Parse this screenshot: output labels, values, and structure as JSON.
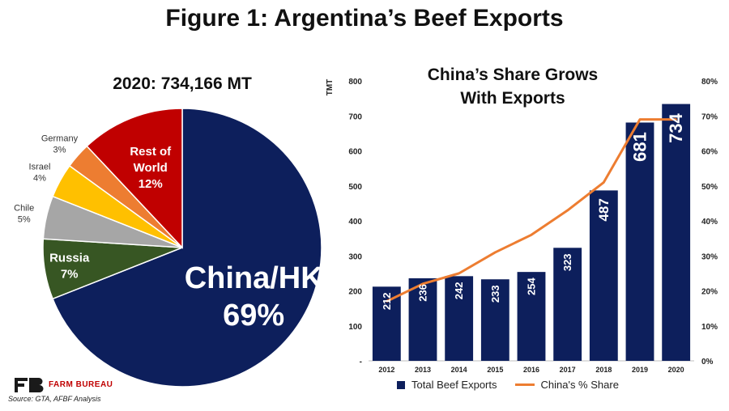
{
  "title": "Figure 1: Argentina’s Beef Exports",
  "source": "Source: GTA, AFBF Analysis",
  "logo_text": "FARM BUREAU",
  "chart_data": [
    {
      "type": "pie",
      "title": "2020: 734,166 MT",
      "slices": [
        {
          "label": "China/HK",
          "value": 69,
          "display": "69%",
          "color": "#0d1f5c"
        },
        {
          "label": "Russia",
          "value": 7,
          "display": "7%",
          "color": "#375623"
        },
        {
          "label": "Chile",
          "value": 5,
          "display": "5%",
          "color": "#a6a6a6"
        },
        {
          "label": "Israel",
          "value": 4,
          "display": "4%",
          "color": "#ffc000"
        },
        {
          "label": "Germany",
          "value": 3,
          "display": "3%",
          "color": "#ed7d31"
        },
        {
          "label": "Rest of World",
          "value": 12,
          "display": "12%",
          "color": "#c00000"
        }
      ]
    },
    {
      "type": "bar+line",
      "title": "China’s Share Grows With Exports",
      "title_lines": [
        "China’s Share Grows",
        "With Exports"
      ],
      "ylabel": "TMT",
      "categories": [
        "2012",
        "2013",
        "2014",
        "2015",
        "2016",
        "2017",
        "2018",
        "2019",
        "2020"
      ],
      "ylim": [
        0,
        800
      ],
      "y_ticks": [
        "-",
        "100",
        "200",
        "300",
        "400",
        "500",
        "600",
        "700",
        "800"
      ],
      "y2lim": [
        0,
        80
      ],
      "y2_ticks": [
        "0%",
        "10%",
        "20%",
        "30%",
        "40%",
        "50%",
        "60%",
        "70%",
        "80%"
      ],
      "series": [
        {
          "name": "Total Beef Exports",
          "type": "bar",
          "color": "#0d1f5c",
          "values": [
            212,
            236,
            242,
            233,
            254,
            323,
            487,
            681,
            734
          ]
        },
        {
          "name": "China's % Share",
          "type": "line",
          "color": "#ed7d31",
          "values": [
            17,
            22,
            25,
            31,
            36,
            43,
            51,
            69,
            69
          ]
        }
      ]
    }
  ]
}
